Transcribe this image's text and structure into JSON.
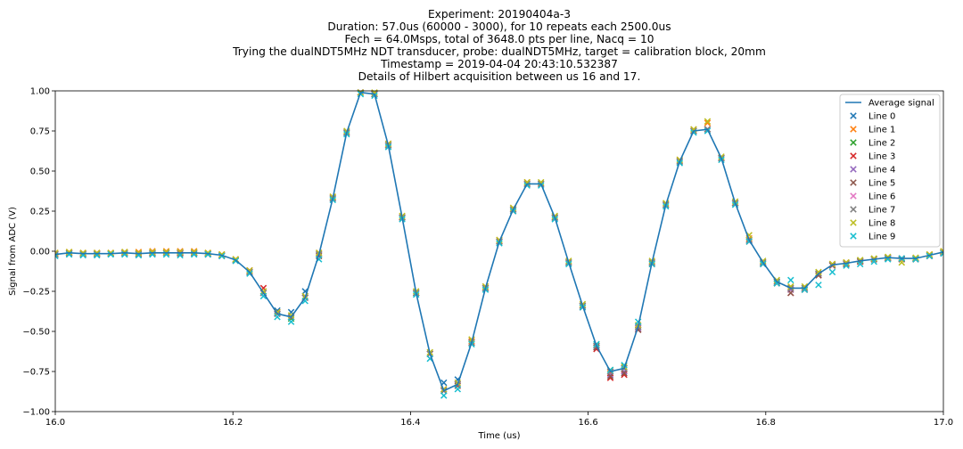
{
  "chart_data": {
    "type": "line",
    "title_lines": [
      "Experiment: 20190404a-3",
      "Duration: 57.0us (60000 - 3000), for 10 repeats each 2500.0us",
      "Fech = 64.0Msps, total of 3648.0 pts per line, Nacq = 10",
      "Trying the dualNDT5MHz NDT transducer, probe: dualNDT5MHz, target = calibration block, 20mm",
      "Timestamp = 2019-04-04 20:43:10.532387",
      "Details of Hilbert acquisition between us 16 and 17."
    ],
    "xlabel": "Time (us)",
    "ylabel": "Signal from ADC (V)",
    "xlim": [
      16.0,
      17.0
    ],
    "ylim": [
      -1.0,
      1.0
    ],
    "xticks": [
      16.0,
      16.2,
      16.4,
      16.6,
      16.8,
      17.0
    ],
    "xtick_labels": [
      "16.0",
      "16.2",
      "16.4",
      "16.6",
      "16.8",
      "17.0"
    ],
    "yticks": [
      -1.0,
      -0.75,
      -0.5,
      -0.25,
      0.0,
      0.25,
      0.5,
      0.75,
      1.0
    ],
    "ytick_labels": [
      "−1.00",
      "−0.75",
      "−0.50",
      "−0.25",
      "0.00",
      "0.25",
      "0.50",
      "0.75",
      "1.00"
    ],
    "grid": false,
    "legend_position": "top-right",
    "legend_labels": [
      "Average signal",
      "Line 0",
      "Line 1",
      "Line 2",
      "Line 3",
      "Line 4",
      "Line 5",
      "Line 6",
      "Line 7",
      "Line 8",
      "Line 9"
    ],
    "average": {
      "name": "Average signal",
      "color": "#1f77b4",
      "x": [
        16.0,
        16.0156,
        16.0313,
        16.0469,
        16.0625,
        16.0781,
        16.0938,
        16.1094,
        16.125,
        16.1406,
        16.1563,
        16.1719,
        16.1875,
        16.2031,
        16.2188,
        16.2344,
        16.25,
        16.2656,
        16.2813,
        16.2969,
        16.3125,
        16.3281,
        16.3438,
        16.3594,
        16.375,
        16.3906,
        16.4063,
        16.4219,
        16.4375,
        16.4531,
        16.4688,
        16.4844,
        16.5,
        16.5156,
        16.5313,
        16.5469,
        16.5625,
        16.5781,
        16.5938,
        16.6094,
        16.625,
        16.6406,
        16.6563,
        16.6719,
        16.6875,
        16.7031,
        16.7188,
        16.7344,
        16.75,
        16.7656,
        16.7813,
        16.7969,
        16.8125,
        16.8281,
        16.8438,
        16.8594,
        16.875,
        16.8906,
        16.9063,
        16.9219,
        16.9375,
        16.9531,
        16.9688,
        16.9844,
        17.0
      ],
      "y": [
        -0.02,
        -0.01,
        -0.015,
        -0.015,
        -0.015,
        -0.01,
        -0.015,
        -0.01,
        -0.01,
        -0.01,
        -0.01,
        -0.015,
        -0.025,
        -0.055,
        -0.13,
        -0.26,
        -0.39,
        -0.41,
        -0.29,
        -0.02,
        0.33,
        0.74,
        0.99,
        0.98,
        0.66,
        0.21,
        -0.26,
        -0.64,
        -0.87,
        -0.83,
        -0.57,
        -0.23,
        0.06,
        0.26,
        0.42,
        0.42,
        0.21,
        -0.07,
        -0.34,
        -0.59,
        -0.75,
        -0.73,
        -0.47,
        -0.07,
        0.29,
        0.56,
        0.75,
        0.76,
        0.58,
        0.3,
        0.07,
        -0.07,
        -0.19,
        -0.23,
        -0.23,
        -0.14,
        -0.085,
        -0.075,
        -0.06,
        -0.05,
        -0.04,
        -0.045,
        -0.045,
        -0.025,
        -0.005
      ]
    },
    "series": [
      {
        "name": "Line 0",
        "color": "#1f77b4",
        "values": [
          -0.02,
          -0.01,
          -0.015,
          -0.015,
          -0.015,
          -0.01,
          -0.015,
          -0.01,
          -0.01,
          -0.01,
          -0.01,
          -0.015,
          -0.025,
          -0.055,
          -0.13,
          -0.26,
          -0.37,
          -0.38,
          -0.25,
          -0.02,
          0.33,
          0.74,
          0.99,
          0.98,
          0.66,
          0.21,
          -0.26,
          -0.64,
          -0.82,
          -0.8,
          -0.57,
          -0.23,
          0.06,
          0.26,
          0.42,
          0.42,
          0.21,
          -0.07,
          -0.34,
          -0.59,
          -0.75,
          -0.73,
          -0.47,
          -0.07,
          0.29,
          0.56,
          0.75,
          0.76,
          0.58,
          0.3,
          0.07,
          -0.07,
          -0.19,
          -0.23,
          -0.23,
          -0.14,
          -0.085,
          -0.075,
          -0.06,
          -0.05,
          -0.04,
          -0.045,
          -0.045,
          -0.025,
          -0.005
        ]
      },
      {
        "name": "Line 1",
        "color": "#ff7f0e",
        "values": [
          -0.01,
          -0.005,
          -0.01,
          -0.01,
          -0.01,
          -0.005,
          -0.005,
          0.0,
          0.0,
          0.0,
          0.0,
          -0.01,
          -0.02,
          -0.05,
          -0.12,
          -0.25,
          -0.39,
          -0.41,
          -0.29,
          -0.01,
          0.34,
          0.74,
          0.99,
          0.98,
          0.66,
          0.21,
          -0.26,
          -0.64,
          -0.87,
          -0.83,
          -0.56,
          -0.22,
          0.07,
          0.27,
          0.43,
          0.42,
          0.21,
          -0.07,
          -0.34,
          -0.6,
          -0.76,
          -0.73,
          -0.48,
          -0.07,
          0.29,
          0.57,
          0.76,
          0.8,
          0.58,
          0.3,
          0.08,
          -0.07,
          -0.19,
          -0.24,
          -0.23,
          -0.14,
          -0.08,
          -0.07,
          -0.06,
          -0.05,
          -0.04,
          -0.05,
          -0.045,
          -0.02,
          0.0
        ]
      },
      {
        "name": "Line 2",
        "color": "#2ca02c",
        "values": [
          -0.02,
          -0.01,
          -0.015,
          -0.015,
          -0.015,
          -0.01,
          -0.015,
          -0.01,
          -0.01,
          -0.01,
          -0.01,
          -0.015,
          -0.025,
          -0.055,
          -0.13,
          -0.26,
          -0.39,
          -0.42,
          -0.29,
          -0.02,
          0.33,
          0.74,
          0.99,
          0.98,
          0.66,
          0.21,
          -0.26,
          -0.64,
          -0.87,
          -0.83,
          -0.57,
          -0.23,
          0.06,
          0.26,
          0.42,
          0.42,
          0.21,
          -0.07,
          -0.34,
          -0.59,
          -0.75,
          -0.73,
          -0.47,
          -0.07,
          0.29,
          0.56,
          0.75,
          0.76,
          0.58,
          0.3,
          0.07,
          -0.07,
          -0.19,
          -0.23,
          -0.23,
          -0.14,
          -0.085,
          -0.075,
          -0.06,
          -0.05,
          -0.04,
          -0.045,
          -0.045,
          -0.025,
          -0.005
        ]
      },
      {
        "name": "Line 3",
        "color": "#d62728",
        "values": [
          -0.02,
          -0.01,
          -0.015,
          -0.015,
          -0.015,
          -0.01,
          -0.015,
          -0.01,
          -0.01,
          -0.005,
          -0.01,
          -0.015,
          -0.025,
          -0.055,
          -0.12,
          -0.23,
          -0.38,
          -0.41,
          -0.29,
          -0.02,
          0.33,
          0.74,
          0.99,
          0.98,
          0.67,
          0.21,
          -0.26,
          -0.64,
          -0.86,
          -0.83,
          -0.57,
          -0.23,
          0.06,
          0.25,
          0.42,
          0.42,
          0.21,
          -0.07,
          -0.35,
          -0.61,
          -0.79,
          -0.77,
          -0.49,
          -0.08,
          0.29,
          0.56,
          0.75,
          0.76,
          0.58,
          0.3,
          0.06,
          -0.08,
          -0.2,
          -0.26,
          -0.24,
          -0.15,
          -0.09,
          -0.08,
          -0.065,
          -0.05,
          -0.045,
          -0.05,
          -0.05,
          -0.03,
          -0.01
        ]
      },
      {
        "name": "Line 4",
        "color": "#9467bd",
        "values": [
          -0.02,
          -0.01,
          -0.015,
          -0.015,
          -0.015,
          -0.01,
          -0.015,
          -0.01,
          -0.01,
          -0.01,
          -0.01,
          -0.015,
          -0.025,
          -0.055,
          -0.13,
          -0.26,
          -0.39,
          -0.41,
          -0.29,
          -0.02,
          0.33,
          0.74,
          0.99,
          0.98,
          0.66,
          0.21,
          -0.26,
          -0.64,
          -0.87,
          -0.83,
          -0.57,
          -0.23,
          0.06,
          0.26,
          0.42,
          0.42,
          0.21,
          -0.07,
          -0.34,
          -0.6,
          -0.77,
          -0.75,
          -0.48,
          -0.07,
          0.29,
          0.56,
          0.75,
          0.76,
          0.58,
          0.3,
          0.07,
          -0.07,
          -0.19,
          -0.24,
          -0.23,
          -0.14,
          -0.085,
          -0.075,
          -0.06,
          -0.05,
          -0.04,
          -0.045,
          -0.045,
          -0.025,
          -0.005
        ]
      },
      {
        "name": "Line 5",
        "color": "#8c564b",
        "values": [
          -0.02,
          -0.015,
          -0.02,
          -0.02,
          -0.015,
          -0.015,
          -0.02,
          -0.015,
          -0.01,
          -0.015,
          -0.015,
          -0.02,
          -0.03,
          -0.06,
          -0.13,
          -0.26,
          -0.39,
          -0.41,
          -0.29,
          -0.03,
          0.33,
          0.74,
          0.99,
          0.98,
          0.66,
          0.21,
          -0.26,
          -0.64,
          -0.87,
          -0.84,
          -0.57,
          -0.23,
          0.06,
          0.26,
          0.42,
          0.42,
          0.21,
          -0.07,
          -0.34,
          -0.6,
          -0.78,
          -0.76,
          -0.49,
          -0.07,
          0.29,
          0.56,
          0.75,
          0.76,
          0.58,
          0.3,
          0.07,
          -0.07,
          -0.2,
          -0.26,
          -0.24,
          -0.15,
          -0.09,
          -0.08,
          -0.065,
          -0.05,
          -0.045,
          -0.05,
          -0.05,
          -0.03,
          -0.01
        ]
      },
      {
        "name": "Line 6",
        "color": "#e377c2",
        "values": [
          -0.02,
          -0.01,
          -0.015,
          -0.015,
          -0.015,
          -0.01,
          -0.015,
          -0.01,
          -0.01,
          -0.01,
          -0.01,
          -0.015,
          -0.025,
          -0.055,
          -0.13,
          -0.26,
          -0.39,
          -0.41,
          -0.29,
          -0.02,
          0.33,
          0.74,
          0.99,
          0.98,
          0.66,
          0.21,
          -0.26,
          -0.64,
          -0.87,
          -0.83,
          -0.57,
          -0.23,
          0.06,
          0.26,
          0.42,
          0.42,
          0.21,
          -0.07,
          -0.34,
          -0.59,
          -0.75,
          -0.73,
          -0.47,
          -0.07,
          0.29,
          0.56,
          0.75,
          0.76,
          0.58,
          0.3,
          0.07,
          -0.07,
          -0.19,
          -0.23,
          -0.23,
          -0.14,
          -0.085,
          -0.075,
          -0.06,
          -0.05,
          -0.04,
          -0.045,
          -0.045,
          -0.025,
          -0.005
        ]
      },
      {
        "name": "Line 7",
        "color": "#7f7f7f",
        "values": [
          -0.02,
          -0.01,
          -0.015,
          -0.015,
          -0.015,
          -0.01,
          -0.015,
          -0.01,
          -0.01,
          -0.01,
          -0.01,
          -0.015,
          -0.025,
          -0.055,
          -0.13,
          -0.26,
          -0.39,
          -0.41,
          -0.29,
          -0.02,
          0.33,
          0.74,
          0.99,
          0.98,
          0.66,
          0.21,
          -0.26,
          -0.64,
          -0.87,
          -0.83,
          -0.57,
          -0.23,
          0.06,
          0.26,
          0.42,
          0.42,
          0.21,
          -0.07,
          -0.34,
          -0.59,
          -0.75,
          -0.73,
          -0.47,
          -0.07,
          0.29,
          0.56,
          0.75,
          0.76,
          0.58,
          0.3,
          0.07,
          -0.07,
          -0.19,
          -0.23,
          -0.23,
          -0.14,
          -0.085,
          -0.075,
          -0.06,
          -0.05,
          -0.04,
          -0.045,
          -0.045,
          -0.025,
          -0.005
        ]
      },
      {
        "name": "Line 8",
        "color": "#bcbd22",
        "values": [
          -0.01,
          -0.005,
          -0.01,
          -0.01,
          -0.01,
          -0.005,
          -0.01,
          -0.005,
          -0.005,
          -0.005,
          -0.005,
          -0.01,
          -0.02,
          -0.05,
          -0.12,
          -0.25,
          -0.38,
          -0.4,
          -0.28,
          -0.01,
          0.34,
          0.75,
          0.99,
          0.99,
          0.67,
          0.22,
          -0.25,
          -0.63,
          -0.86,
          -0.82,
          -0.55,
          -0.22,
          0.07,
          0.27,
          0.43,
          0.43,
          0.22,
          -0.06,
          -0.33,
          -0.58,
          -0.74,
          -0.72,
          -0.46,
          -0.06,
          0.3,
          0.57,
          0.76,
          0.81,
          0.59,
          0.31,
          0.1,
          -0.06,
          -0.18,
          -0.22,
          -0.22,
          -0.13,
          -0.08,
          -0.07,
          -0.055,
          -0.045,
          -0.035,
          -0.07,
          -0.04,
          -0.02,
          0.0
        ]
      },
      {
        "name": "Line 9",
        "color": "#17becf",
        "values": [
          -0.03,
          -0.02,
          -0.025,
          -0.025,
          -0.02,
          -0.02,
          -0.025,
          -0.02,
          -0.02,
          -0.025,
          -0.02,
          -0.02,
          -0.03,
          -0.06,
          -0.14,
          -0.28,
          -0.41,
          -0.44,
          -0.31,
          -0.05,
          0.32,
          0.73,
          0.98,
          0.97,
          0.65,
          0.2,
          -0.27,
          -0.67,
          -0.9,
          -0.86,
          -0.58,
          -0.24,
          0.05,
          0.25,
          0.41,
          0.41,
          0.2,
          -0.08,
          -0.35,
          -0.58,
          -0.74,
          -0.71,
          -0.44,
          -0.08,
          0.28,
          0.55,
          0.74,
          0.75,
          0.57,
          0.29,
          0.06,
          -0.08,
          -0.2,
          -0.18,
          -0.24,
          -0.21,
          -0.13,
          -0.09,
          -0.08,
          -0.065,
          -0.05,
          -0.045,
          -0.05,
          -0.03,
          -0.015
        ]
      }
    ]
  }
}
